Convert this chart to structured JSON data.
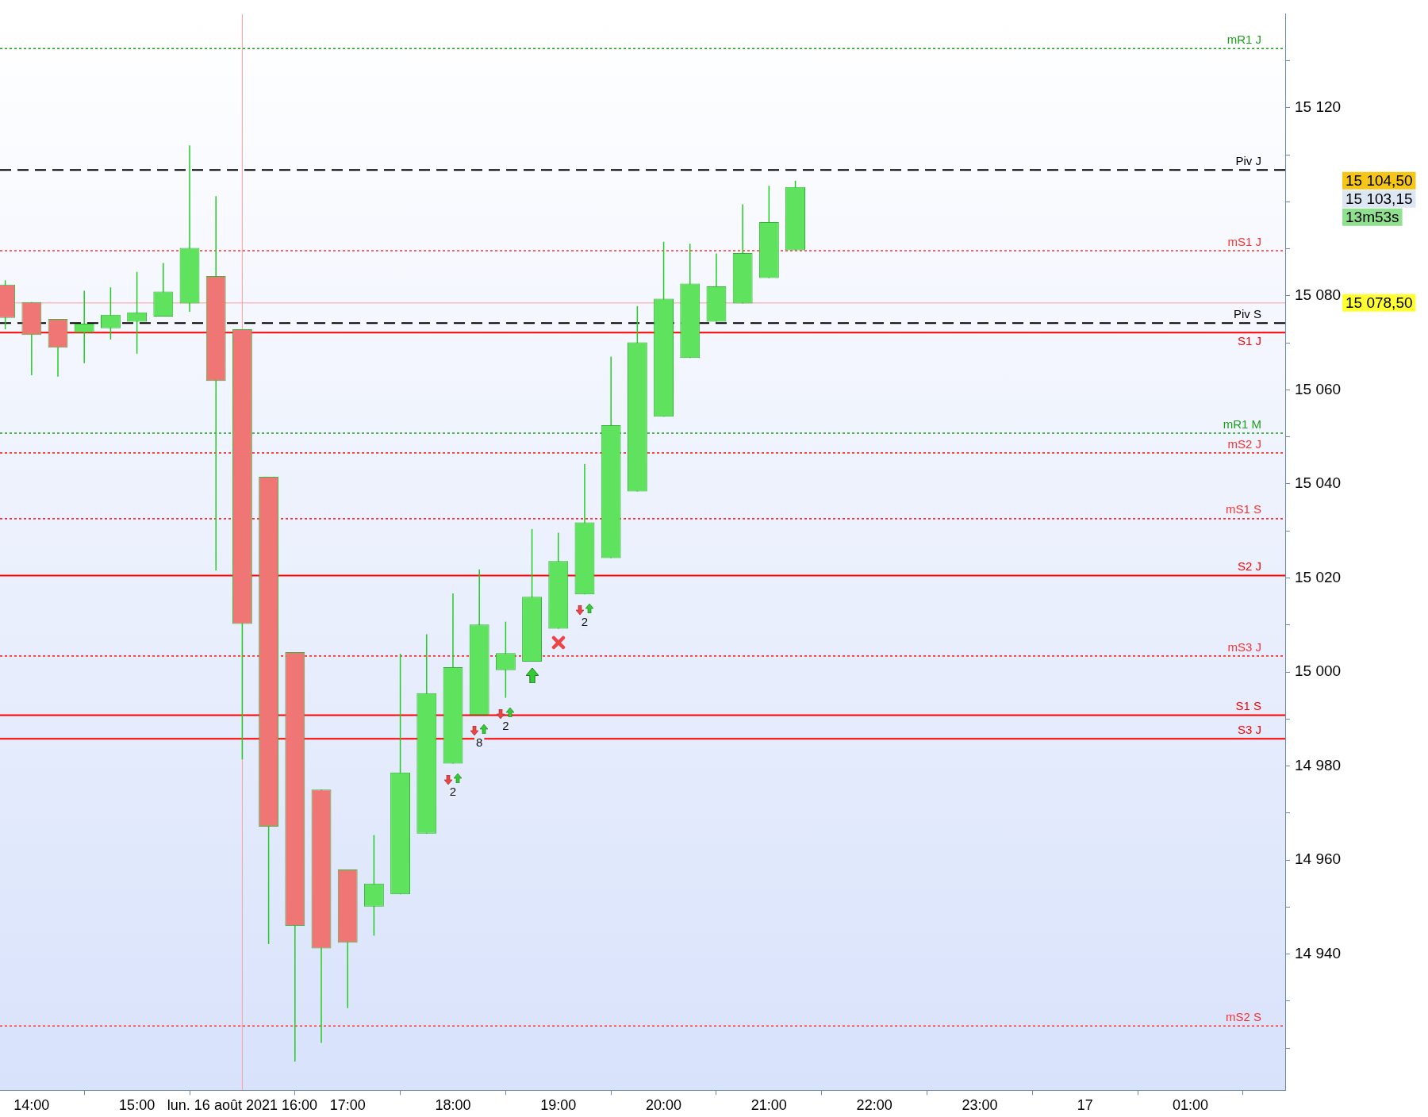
{
  "chart_data": {
    "type": "candlestick",
    "x": [
      "2021-08-16T13:45",
      "2021-08-16T14:00",
      "2021-08-16T14:15",
      "2021-08-16T14:30",
      "2021-08-16T14:45",
      "2021-08-16T15:00",
      "2021-08-16T15:15",
      "2021-08-16T15:30",
      "2021-08-16T15:45",
      "2021-08-16T16:00",
      "2021-08-16T16:15",
      "2021-08-16T16:30",
      "2021-08-16T16:45",
      "2021-08-16T17:00",
      "2021-08-16T17:15",
      "2021-08-16T17:30",
      "2021-08-16T17:45",
      "2021-08-16T18:00",
      "2021-08-16T18:15",
      "2021-08-16T18:30",
      "2021-08-16T18:45",
      "2021-08-16T19:00",
      "2021-08-16T19:15",
      "2021-08-16T19:30",
      "2021-08-16T19:45",
      "2021-08-16T20:00",
      "2021-08-16T20:15",
      "2021-08-16T20:30",
      "2021-08-16T20:45",
      "2021-08-16T21:00",
      "2021-08-16T21:15"
    ],
    "ohlc": [
      [
        15082.4,
        15083.3,
        15072.9,
        15075.3
      ],
      [
        15078.7,
        15078.7,
        15063.1,
        15071.7
      ],
      [
        15075.1,
        15075.1,
        15062.8,
        15069.0
      ],
      [
        15072.2,
        15081.1,
        15065.7,
        15074.1
      ],
      [
        15073.1,
        15081.8,
        15070.7,
        15076.0
      ],
      [
        15074.5,
        15085.1,
        15067.7,
        15076.5
      ],
      [
        15075.6,
        15087.0,
        15075.6,
        15080.9
      ],
      [
        15078.4,
        15112.0,
        15076.6,
        15090.2
      ],
      [
        15084.2,
        15101.2,
        15021.6,
        15061.9
      ],
      [
        15072.9,
        15072.9,
        14981.4,
        15010.2
      ],
      [
        15041.5,
        15041.5,
        14942.1,
        14967.1
      ],
      [
        15004.2,
        15004.2,
        14917.1,
        14946.0
      ],
      [
        14975.0,
        14975.0,
        14921.1,
        14941.2
      ],
      [
        14958.0,
        14958.0,
        14928.5,
        14942.4
      ],
      [
        14950.1,
        14965.3,
        14943.9,
        14955.0
      ],
      [
        14952.7,
        15003.9,
        14952.7,
        14978.6
      ],
      [
        14965.6,
        15008.0,
        14965.6,
        14995.5
      ],
      [
        14980.5,
        15016.7,
        14980.5,
        15001.0
      ],
      [
        14990.9,
        15021.8,
        14990.9,
        15010.1
      ],
      [
        15000.4,
        15010.7,
        14994.5,
        15004.0
      ],
      [
        15002.2,
        15030.4,
        15002.2,
        15016.0
      ],
      [
        15009.2,
        15029.6,
        15009.2,
        15023.6
      ],
      [
        15016.5,
        15044.2,
        15016.5,
        15031.8
      ],
      [
        15024.2,
        15067.1,
        15024.2,
        15052.5
      ],
      [
        15038.4,
        15077.8,
        15038.4,
        15070.1
      ],
      [
        15054.3,
        15091.5,
        15054.3,
        15079.4
      ],
      [
        15066.8,
        15091.1,
        15066.8,
        15082.6
      ],
      [
        15074.5,
        15089.0,
        15074.5,
        15082.0
      ],
      [
        15078.4,
        15099.5,
        15078.4,
        15089.1
      ],
      [
        15083.8,
        15103.4,
        15083.8,
        15095.7
      ],
      [
        15089.7,
        15104.5,
        15089.7,
        15103.15
      ]
    ],
    "xlim": [
      "2021-08-16T13:42",
      "2021-08-17T01:54"
    ],
    "xticks": [
      {
        "value": "2021-08-16T14:00",
        "label": "14:00"
      },
      {
        "value": "2021-08-16T15:00",
        "label": "15:00"
      },
      {
        "value": "2021-08-16T16:00",
        "label": "lun. 16 août 2021 16:00"
      },
      {
        "value": "2021-08-16T17:00",
        "label": "17:00"
      },
      {
        "value": "2021-08-16T18:00",
        "label": "18:00"
      },
      {
        "value": "2021-08-16T19:00",
        "label": "19:00"
      },
      {
        "value": "2021-08-16T20:00",
        "label": "20:00"
      },
      {
        "value": "2021-08-16T21:00",
        "label": "21:00"
      },
      {
        "value": "2021-08-16T22:00",
        "label": "22:00"
      },
      {
        "value": "2021-08-16T23:00",
        "label": "23:00"
      },
      {
        "value": "2021-08-17T00:00",
        "label": "17"
      },
      {
        "value": "2021-08-17T01:00",
        "label": "01:00"
      }
    ],
    "ylim": [
      14911,
      15140
    ],
    "yticks": [
      {
        "value": 14920,
        "label": null
      },
      {
        "value": 14930,
        "label": null
      },
      {
        "value": 14940,
        "label": "14 940"
      },
      {
        "value": 14950,
        "label": null
      },
      {
        "value": 14960,
        "label": "14 960"
      },
      {
        "value": 14970,
        "label": null
      },
      {
        "value": 14980,
        "label": "14 980"
      },
      {
        "value": 14990,
        "label": null
      },
      {
        "value": 15000,
        "label": "15 000"
      },
      {
        "value": 15010,
        "label": null
      },
      {
        "value": 15020,
        "label": "15 020"
      },
      {
        "value": 15030,
        "label": null
      },
      {
        "value": 15040,
        "label": "15 040"
      },
      {
        "value": 15050,
        "label": null
      },
      {
        "value": 15060,
        "label": "15 060"
      },
      {
        "value": 15070,
        "label": null
      },
      {
        "value": 15080,
        "label": "15 080"
      },
      {
        "value": 15090,
        "label": null
      },
      {
        "value": 15100,
        "label": null
      },
      {
        "value": 15110,
        "label": null
      },
      {
        "value": 15120,
        "label": "15 120"
      },
      {
        "value": 15130,
        "label": null
      }
    ],
    "grid": false,
    "legend": false,
    "ref_lines": [
      {
        "axis": "y",
        "value": 15132.6,
        "label": "mR1 J",
        "color": "#1a9e1a",
        "line_style": "dotted"
      },
      {
        "axis": "y",
        "value": 15106.8,
        "label": "Piv J",
        "color": "#000000",
        "line_style": "dashed"
      },
      {
        "axis": "y",
        "value": 15089.6,
        "label": "mS1 J",
        "color": "#ff3030",
        "line_style": "dotted"
      },
      {
        "axis": "y",
        "value": 15078.5,
        "color": "#ff9e9e",
        "line_style": "solid"
      },
      {
        "axis": "y",
        "value": 15074.2,
        "label": "Piv S",
        "color": "#000000",
        "line_style": "dashed"
      },
      {
        "axis": "y",
        "value": 15072.2,
        "label": "S1 J",
        "color": "#ff0000",
        "line_style": "solid"
      },
      {
        "axis": "y",
        "value": 15050.8,
        "label": "mR1 M",
        "color": "#1a9e1a",
        "line_style": "dotted"
      },
      {
        "axis": "y",
        "value": 15046.6,
        "label": "mS2 J",
        "color": "#ff3030",
        "line_style": "dotted"
      },
      {
        "axis": "y",
        "value": 15032.6,
        "label": "mS1 S",
        "color": "#ff3030",
        "line_style": "dotted"
      },
      {
        "axis": "y",
        "value": 15020.5,
        "label": "S2 J",
        "color": "#ff0000",
        "line_style": "solid"
      },
      {
        "axis": "y",
        "value": 15003.4,
        "label": "mS3 J",
        "color": "#ff3030",
        "line_style": "dotted"
      },
      {
        "axis": "y",
        "value": 14990.8,
        "label": "S1 S",
        "color": "#ff0000",
        "line_style": "solid"
      },
      {
        "axis": "y",
        "value": 14985.8,
        "label": "S3 J",
        "color": "#ff0000",
        "line_style": "solid"
      },
      {
        "axis": "y",
        "value": 14924.7,
        "label": "mS2 S",
        "color": "#ff3030",
        "line_style": "dotted"
      },
      {
        "axis": "x",
        "value": "2021-08-16T16:00",
        "color": "#ff9e9e",
        "line_style": "solid"
      }
    ],
    "annotations": [
      "2",
      "8",
      "2",
      "2",
      "15 104,50",
      "15 103,15",
      "13m53s",
      "15 078,50"
    ]
  }
}
